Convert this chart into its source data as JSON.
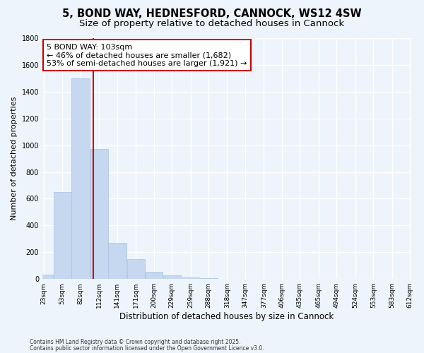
{
  "title": "5, BOND WAY, HEDNESFORD, CANNOCK, WS12 4SW",
  "subtitle": "Size of property relative to detached houses in Cannock",
  "xlabel": "Distribution of detached houses by size in Cannock",
  "ylabel": "Number of detached properties",
  "footnote1": "Contains HM Land Registry data © Crown copyright and database right 2025.",
  "footnote2": "Contains public sector information licensed under the Open Government Licence v3.0.",
  "bins": [
    23,
    53,
    82,
    112,
    141,
    171,
    200,
    229,
    259,
    288,
    318,
    347,
    377,
    406,
    435,
    465,
    494,
    524,
    553,
    583,
    612
  ],
  "counts": [
    35,
    650,
    1500,
    970,
    270,
    150,
    55,
    30,
    10,
    5,
    3,
    2,
    1,
    1,
    1,
    0,
    0,
    0,
    0,
    0
  ],
  "bar_color": "#c5d8f0",
  "bar_edge_color": "#aec6e8",
  "property_size": 103,
  "vline_color": "#cc0000",
  "annotation_line1": "5 BOND WAY: 103sqm",
  "annotation_line2": "← 46% of detached houses are smaller (1,682)",
  "annotation_line3": "53% of semi-detached houses are larger (1,921) →",
  "annotation_box_color": "#ffffff",
  "annotation_box_edge": "#cc0000",
  "ylim": [
    0,
    1800
  ],
  "yticks": [
    0,
    200,
    400,
    600,
    800,
    1000,
    1200,
    1400,
    1600,
    1800
  ],
  "bg_color": "#eef4fb",
  "grid_color": "#ffffff",
  "title_fontsize": 10.5,
  "subtitle_fontsize": 9.5,
  "annot_fontsize": 8.0
}
